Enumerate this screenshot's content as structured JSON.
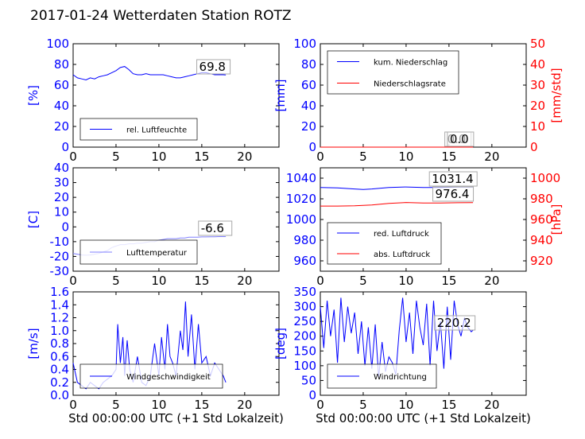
{
  "title": "2017-01-24 Wetterdaten Station ROTZ",
  "xlabel": "Std 00:00:00 UTC (+1 Std Lokalzeit)",
  "colors": {
    "primary": "#0000ff",
    "secondary": "#ff0000",
    "light": "#8080ff"
  },
  "chart_data": [
    {
      "type": "line",
      "ylabel": "[%]",
      "xlim": [
        0,
        24
      ],
      "ylim": [
        0,
        100
      ],
      "xticks": [
        0,
        5,
        10,
        15,
        20
      ],
      "yticks": [
        0,
        20,
        40,
        60,
        80,
        100
      ],
      "legend": "bottom-left",
      "annotation": "69.8",
      "series": [
        {
          "name": "rel. Luftfeuchte",
          "color": "#0000ff",
          "x": [
            0,
            0.5,
            1,
            1.5,
            2,
            2.5,
            3,
            3.5,
            4,
            4.5,
            5,
            5.5,
            6,
            6.5,
            7,
            7.5,
            8,
            8.5,
            9,
            9.5,
            10,
            10.5,
            11,
            11.5,
            12,
            12.5,
            13,
            13.5,
            14,
            14.5,
            15,
            15.5,
            16,
            16.5,
            17,
            17.5,
            17.8
          ],
          "y": [
            70,
            67,
            66,
            65,
            67,
            66,
            68,
            69,
            70,
            72,
            74,
            77,
            78,
            75,
            71,
            70,
            70,
            71,
            70,
            70,
            70,
            70,
            69,
            68,
            67,
            67,
            68,
            69,
            70,
            71,
            72,
            72,
            71,
            70,
            70,
            70,
            69.8
          ]
        }
      ]
    },
    {
      "type": "line",
      "ylabel": "[mm]",
      "ylabel2": "[mm/std]",
      "xlim": [
        0,
        24
      ],
      "ylim": [
        0,
        100
      ],
      "ylim2": [
        0,
        50
      ],
      "xticks": [
        0,
        5,
        10,
        15,
        20
      ],
      "yticks": [
        0,
        20,
        40,
        60,
        80,
        100
      ],
      "yticks2": [
        0,
        10,
        20,
        30,
        40,
        50
      ],
      "legend": "top-left",
      "annotations": [
        "0.0",
        "0.0"
      ],
      "series": [
        {
          "name": "kum. Niederschlag",
          "color": "#0000ff",
          "x": [
            0,
            17.8
          ],
          "y": [
            0,
            0
          ]
        },
        {
          "name": "Niederschlagsrate",
          "color": "#ff0000",
          "axis": "right",
          "x": [
            0,
            17.8
          ],
          "y": [
            0,
            0
          ]
        }
      ]
    },
    {
      "type": "line",
      "ylabel": "[C]",
      "xlim": [
        0,
        24
      ],
      "ylim": [
        -30,
        40
      ],
      "xticks": [
        0,
        5,
        10,
        15,
        20
      ],
      "yticks": [
        -30,
        -20,
        -10,
        0,
        10,
        20,
        30,
        40
      ],
      "legend": "bottom-left",
      "annotation": "-6.6",
      "series": [
        {
          "name": "Lufttemperatur",
          "color": "#8080ff",
          "x": [
            0,
            0.5,
            1,
            1.5,
            2,
            2.5,
            3,
            3.5,
            4,
            4.5,
            5,
            5.5,
            6,
            6.5,
            7,
            7.5,
            8,
            8.5,
            9,
            9.5,
            10,
            10.5,
            11,
            11.5,
            12,
            12.5,
            13,
            13.5,
            14,
            14.5,
            15,
            15.5,
            16,
            16.5,
            17,
            17.5,
            17.8
          ],
          "y": [
            -18,
            -18.5,
            -19,
            -19.2,
            -19,
            -18.5,
            -18,
            -17,
            -16,
            -14,
            -13,
            -12,
            -12,
            -11.5,
            -11.5,
            -11,
            -11,
            -10.5,
            -10,
            -10,
            -9,
            -8.5,
            -8,
            -8,
            -8,
            -7.5,
            -7.5,
            -7,
            -7,
            -7,
            -6.8,
            -6.8,
            -6.7,
            -6.7,
            -6.6,
            -6.6,
            -6.6
          ]
        }
      ]
    },
    {
      "type": "line",
      "ylabel": "",
      "ylabel2": "[hPa]",
      "xlim": [
        0,
        24
      ],
      "ylim": [
        950,
        1050
      ],
      "ylim2": [
        910,
        1010
      ],
      "xticks": [
        0,
        5,
        10,
        15,
        20
      ],
      "yticks": [
        960,
        980,
        1000,
        1020,
        1040
      ],
      "yticks2": [
        920,
        940,
        960,
        980,
        1000
      ],
      "legend": "bottom-left",
      "annotations": [
        "1031.4",
        "976.4"
      ],
      "series": [
        {
          "name": "red. Luftdruck",
          "color": "#0000ff",
          "x": [
            0,
            2,
            4,
            5,
            6,
            8,
            10,
            12,
            14,
            16,
            17.8
          ],
          "y": [
            1031,
            1030.5,
            1029.5,
            1029,
            1029.5,
            1031,
            1031.5,
            1031,
            1031,
            1031.3,
            1031.4
          ]
        },
        {
          "name": "abs. Luftdruck",
          "color": "#ff0000",
          "axis": "right",
          "x": [
            0,
            2,
            4,
            6,
            8,
            10,
            12,
            14,
            16,
            17.8
          ],
          "y": [
            973,
            973,
            973.2,
            974,
            975.5,
            976.5,
            976,
            976,
            976.2,
            976.4
          ]
        }
      ]
    },
    {
      "type": "line",
      "ylabel": "[m/s]",
      "xlim": [
        0,
        24
      ],
      "ylim": [
        0,
        1.6
      ],
      "xticks": [
        0,
        5,
        10,
        15,
        20
      ],
      "yticks": [
        0.0,
        0.2,
        0.4,
        0.6,
        0.8,
        1.0,
        1.2,
        1.4,
        1.6
      ],
      "legend": "bottom-left",
      "series": [
        {
          "name": "Windgeschwindigkeit",
          "color": "#0000ff",
          "x": [
            0,
            0.5,
            1,
            1.5,
            2,
            2.5,
            3,
            3.5,
            4,
            4.5,
            5,
            5.2,
            5.5,
            5.8,
            6,
            6.3,
            6.6,
            7,
            7.5,
            8,
            8.5,
            9,
            9.5,
            10,
            10.3,
            10.7,
            11,
            11.3,
            11.6,
            12,
            12.5,
            12.8,
            13.1,
            13.4,
            13.8,
            14.2,
            14.6,
            15,
            15.5,
            16,
            16.5,
            17,
            17.5,
            17.8
          ],
          "y": [
            0.5,
            0.2,
            0.15,
            0.1,
            0.2,
            0.15,
            0.1,
            0.2,
            0.25,
            0.3,
            0.4,
            1.1,
            0.5,
            0.9,
            0.3,
            0.85,
            0.4,
            0.2,
            0.6,
            0.2,
            0.15,
            0.3,
            0.8,
            0.3,
            0.9,
            0.4,
            1.1,
            0.6,
            0.5,
            0.3,
            1.0,
            0.7,
            1.45,
            0.6,
            1.25,
            0.4,
            1.1,
            0.5,
            0.6,
            0.3,
            0.5,
            0.4,
            0.3,
            0.2
          ]
        }
      ]
    },
    {
      "type": "line",
      "ylabel": "[deg]",
      "xlim": [
        0,
        24
      ],
      "ylim": [
        0,
        350
      ],
      "xticks": [
        0,
        5,
        10,
        15,
        20
      ],
      "yticks": [
        0,
        50,
        100,
        150,
        200,
        250,
        300,
        350
      ],
      "legend": "bottom-left",
      "annotation": "220.2",
      "series": [
        {
          "name": "Windrichtung",
          "color": "#0000ff",
          "x": [
            0,
            0.4,
            0.8,
            1.2,
            1.6,
            2,
            2.4,
            2.8,
            3.2,
            3.6,
            4,
            4.4,
            4.8,
            5.2,
            5.6,
            6,
            6.4,
            6.8,
            7.2,
            7.6,
            8,
            8.4,
            8.8,
            9.2,
            9.6,
            10,
            10.4,
            10.8,
            11.2,
            11.6,
            12,
            12.4,
            12.8,
            13.2,
            13.6,
            14,
            14.4,
            14.8,
            15.2,
            15.6,
            16,
            16.4,
            16.8,
            17.2,
            17.6,
            17.8
          ],
          "y": [
            300,
            160,
            320,
            200,
            290,
            110,
            330,
            180,
            300,
            210,
            280,
            140,
            250,
            100,
            230,
            90,
            240,
            60,
            180,
            80,
            130,
            110,
            70,
            220,
            330,
            180,
            280,
            140,
            320,
            230,
            170,
            310,
            100,
            320,
            150,
            250,
            90,
            300,
            120,
            320,
            240,
            200,
            260,
            230,
            215,
            220.2
          ]
        }
      ]
    }
  ]
}
